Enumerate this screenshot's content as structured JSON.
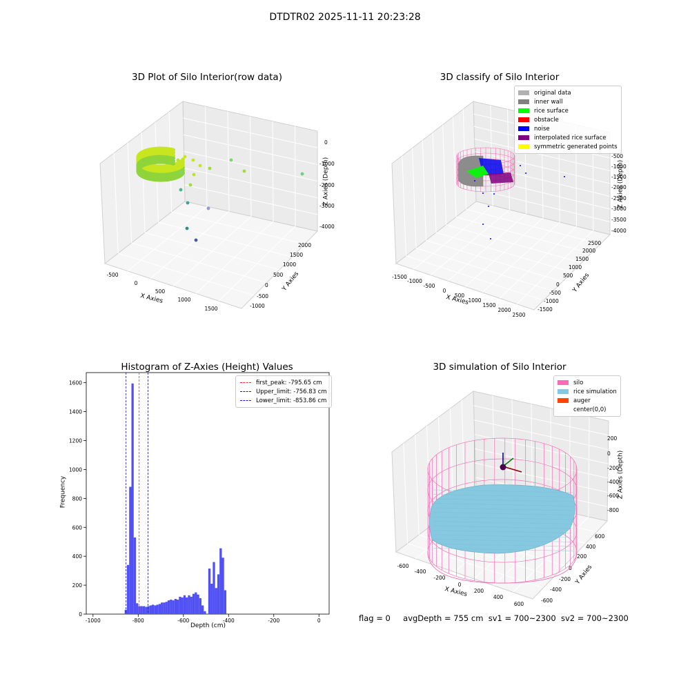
{
  "suptitle": "DTDTR02 2025-11-11 20:23:28",
  "colors": {
    "hist_bar": "#5050f5",
    "first_peak": "#e03030",
    "limits": "#1a1aa0",
    "silo": "#f46fb3",
    "rice": "#86c8e0",
    "auger": "#ff4500",
    "inner_wall": "#888888",
    "rice_surface": "#00ff00",
    "noise": "#0000ff",
    "interpolated": "#800080"
  },
  "chart_data": [
    {
      "type": "scatter",
      "subtype": "3d",
      "title": "3D Plot of Silo Interior(row data)",
      "xlabel": "X Axies",
      "ylabel": "Y Axies",
      "zlabel": "Z Axies (Depth)",
      "x_ticks": [
        "-500",
        "0",
        "500",
        "1000",
        "1500"
      ],
      "y_ticks": [
        "-1000",
        "-500",
        "0",
        "500",
        "1000",
        "1500",
        "2000"
      ],
      "z_ticks": [
        "0",
        "-1000",
        "-2000",
        "-3000",
        "-4000"
      ],
      "grid": true
    },
    {
      "type": "scatter",
      "subtype": "3d",
      "title": "3D classify of Silo Interior",
      "xlabel": "X Axies",
      "ylabel": "Y Axies",
      "zlabel": "Z Axies (Depth)",
      "x_ticks": [
        "-1500",
        "-1000",
        "-500",
        "0",
        "500",
        "1000",
        "1500",
        "2000",
        "2500"
      ],
      "y_ticks": [
        "-1500",
        "-1000",
        "-500",
        "0",
        "500",
        "1000",
        "1500",
        "2000",
        "2500"
      ],
      "z_ticks": [
        "-500",
        "-1000",
        "-1500",
        "-2000",
        "-2500",
        "-3000",
        "-3500",
        "-4000"
      ],
      "legend": [
        {
          "label": "original data",
          "color": "#b0b0b0"
        },
        {
          "label": "inner wall",
          "color": "#808080"
        },
        {
          "label": "rice surface",
          "color": "#00ff00"
        },
        {
          "label": "obstacle",
          "color": "#ff0000"
        },
        {
          "label": "noise",
          "color": "#0000ff"
        },
        {
          "label": "interpolated rice surface",
          "color": "#800080"
        },
        {
          "label": "symmetric generated points",
          "color": "#ffff00"
        }
      ],
      "legend_position": "top-right",
      "grid": true
    },
    {
      "type": "bar",
      "subtype": "histogram",
      "title": "Histogram of Z-Axies (Height) Values",
      "xlabel": "Depth (cm)",
      "ylabel": "Frequency",
      "xlim": [
        -1030,
        45
      ],
      "ylim": [
        0,
        1670
      ],
      "x_ticks": [
        "-1000",
        "-800",
        "-600",
        "-400",
        "-200",
        "0"
      ],
      "y_ticks": [
        "0",
        "200",
        "400",
        "600",
        "800",
        "1000",
        "1200",
        "1400",
        "1600"
      ],
      "bin_start": -860,
      "bin_width": 10,
      "values": [
        30,
        340,
        880,
        1595,
        530,
        75,
        55,
        55,
        55,
        50,
        55,
        60,
        65,
        60,
        65,
        70,
        80,
        80,
        85,
        95,
        100,
        95,
        105,
        100,
        120,
        115,
        130,
        115,
        130,
        120,
        140,
        150,
        135,
        110,
        60,
        20,
        0,
        315,
        210,
        360,
        180,
        275,
        455,
        390,
        165
      ],
      "vlines": [
        {
          "label": "first_peak: -795.65 cm",
          "x": -795.65,
          "color": "#e03030"
        },
        {
          "label": "Upper_limit: -756.83 cm",
          "x": -756.83,
          "color": "#1a1aa0"
        },
        {
          "label": "Lower_limit: -853.86 cm",
          "x": -853.86,
          "color": "#1a1aa0"
        }
      ],
      "legend_position": "top-right"
    },
    {
      "type": "surface",
      "subtype": "3d",
      "title": "3D simulation of Silo Interior",
      "xlabel": "X Axies",
      "ylabel": "Y Axies",
      "zlabel": "Z Axies (Depth)",
      "x_ticks": [
        "-600",
        "-400",
        "-200",
        "0",
        "200",
        "400",
        "600"
      ],
      "y_ticks": [
        "-600",
        "-400",
        "-200",
        "0",
        "200",
        "400",
        "600"
      ],
      "z_ticks": [
        "200",
        "0",
        "-200",
        "-400",
        "-600",
        "-800"
      ],
      "legend": [
        {
          "label": "silo",
          "color": "#f46fb3"
        },
        {
          "label": "rice simulation",
          "color": "#86c8e0"
        },
        {
          "label": "auger",
          "color": "#ff4500"
        },
        {
          "label": "center(0,0)",
          "color": "#ffffff"
        }
      ],
      "legend_position": "top-right"
    }
  ],
  "footer": {
    "flag": "flag = 0",
    "avg_depth": "avgDepth = 755 cm",
    "sv1": "sv1 = 700~2300",
    "sv2": "sv2 = 700~2300"
  }
}
